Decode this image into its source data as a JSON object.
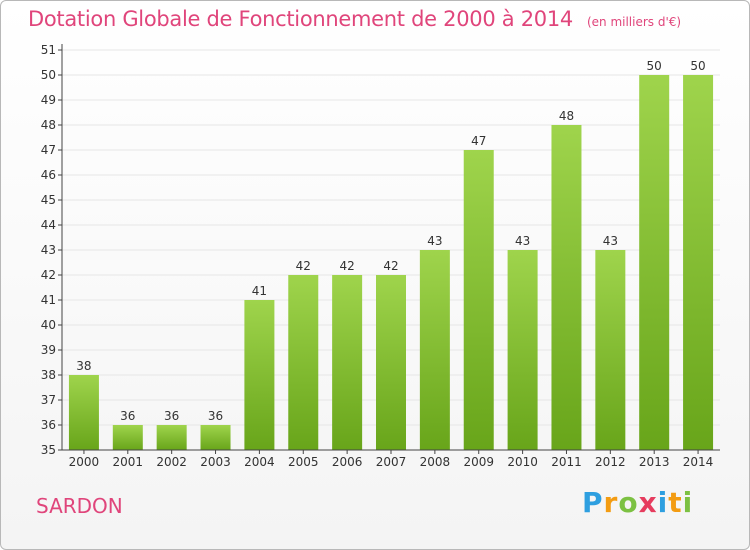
{
  "title": "Dotation Globale de Fonctionnement de 2000 à 2014",
  "subtitle": "(en milliers d'€)",
  "commune": "SARDON",
  "brand": {
    "letters": [
      "P",
      "r",
      "o",
      "x",
      "i",
      "t",
      "i"
    ],
    "colors": [
      "#2e9fe0",
      "#f39c12",
      "#7cc142",
      "#e63c5e",
      "#2e9fe0",
      "#f39c12",
      "#7cc142"
    ]
  },
  "colors": {
    "bar_light": "#9fd44c",
    "bar_dark": "#68a51a",
    "axis": "#444444",
    "grid": "#e6e6e6",
    "text": "#333333",
    "accent": "#e0457b"
  },
  "chart_data": {
    "type": "bar",
    "title": "Dotation Globale de Fonctionnement de 2000 à 2014",
    "subtitle": "(en milliers d'€)",
    "categories": [
      "2000",
      "2001",
      "2002",
      "2003",
      "2004",
      "2005",
      "2006",
      "2007",
      "2008",
      "2009",
      "2010",
      "2011",
      "2012",
      "2013",
      "2014"
    ],
    "values": [
      38,
      36,
      36,
      36,
      41,
      42,
      42,
      42,
      43,
      47,
      43,
      48,
      43,
      50,
      50
    ],
    "ylim": [
      35,
      51
    ],
    "yticks": [
      35,
      36,
      37,
      38,
      39,
      40,
      41,
      42,
      43,
      44,
      45,
      46,
      47,
      48,
      49,
      50,
      51
    ],
    "grid": true,
    "data_labels": true
  }
}
